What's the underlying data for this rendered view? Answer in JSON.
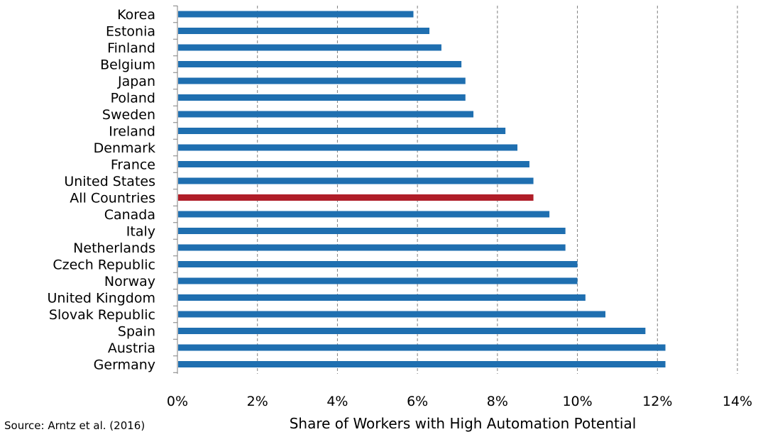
{
  "source_note": "Source: Arntz et al. (2016)",
  "colors": {
    "bar": "#1f6fb0",
    "highlight": "#b01e28",
    "axis": "#7f7f7f",
    "grid": "#7f7f7f"
  },
  "chart_data": {
    "type": "bar",
    "orientation": "horizontal",
    "categories": [
      "Korea",
      "Estonia",
      "Finland",
      "Belgium",
      "Japan",
      "Poland",
      "Sweden",
      "Ireland",
      "Denmark",
      "France",
      "United States",
      "All Countries",
      "Canada",
      "Italy",
      "Netherlands",
      "Czech Republic",
      "Norway",
      "United Kingdom",
      "Slovak Republic",
      "Spain",
      "Austria",
      "Germany"
    ],
    "values": [
      5.9,
      6.3,
      6.6,
      7.1,
      7.2,
      7.2,
      7.4,
      8.2,
      8.5,
      8.8,
      8.9,
      8.9,
      9.3,
      9.7,
      9.7,
      10.0,
      10.0,
      10.2,
      10.7,
      11.7,
      12.2,
      12.2
    ],
    "highlight": "All Countries",
    "xlabel": "Share of Workers with High Automation Potential",
    "ylabel": "",
    "xlim": [
      0,
      14
    ],
    "xticks": [
      "0%",
      "2%",
      "4%",
      "6%",
      "8%",
      "10%",
      "12%",
      "14%"
    ],
    "grid": "vertical dashed",
    "legend": "none"
  }
}
